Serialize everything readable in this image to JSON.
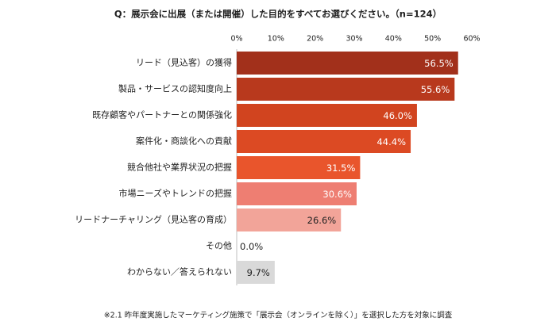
{
  "chart_data": {
    "type": "barh",
    "title": "Q：展示会に出展（または開催）した目的をすべてお選びください。（n=124）",
    "categories": [
      "リード（見込客）の獲得",
      "製品・サービスの認知度向上",
      "既存顧客やパートナーとの関係強化",
      "案件化・商談化への貢献",
      "競合他社や業界状況の把握",
      "市場ニーズやトレンドの把握",
      "リードナーチャリング（見込客の育成）",
      "その他",
      "わからない／答えられない"
    ],
    "values": [
      56.5,
      55.6,
      46.0,
      44.4,
      31.5,
      30.6,
      26.6,
      0.0,
      9.7
    ],
    "value_labels": [
      "56.5%",
      "55.6%",
      "46.0%",
      "44.4%",
      "31.5%",
      "30.6%",
      "26.6%",
      "0.0%",
      "9.7%"
    ],
    "colors": [
      "#a2301b",
      "#b8391d",
      "#d1441f",
      "#dc4a23",
      "#e9552c",
      "#ee7e72",
      "#f2a499",
      "#f4c3bb",
      "#d9d9d9"
    ],
    "xlim": [
      0,
      60
    ],
    "xticks": [
      {
        "value": 0,
        "label": "0%"
      },
      {
        "value": 10,
        "label": "10%"
      },
      {
        "value": 20,
        "label": "20%"
      },
      {
        "value": 30,
        "label": "30%"
      },
      {
        "value": 40,
        "label": "40%"
      },
      {
        "value": 50,
        "label": "50%"
      },
      {
        "value": 60,
        "label": "60%"
      }
    ],
    "footnote": "※2.1 昨年度実施したマーケティング施策で「展示会（オンラインを除く）」を選択した方を対象に調査"
  }
}
